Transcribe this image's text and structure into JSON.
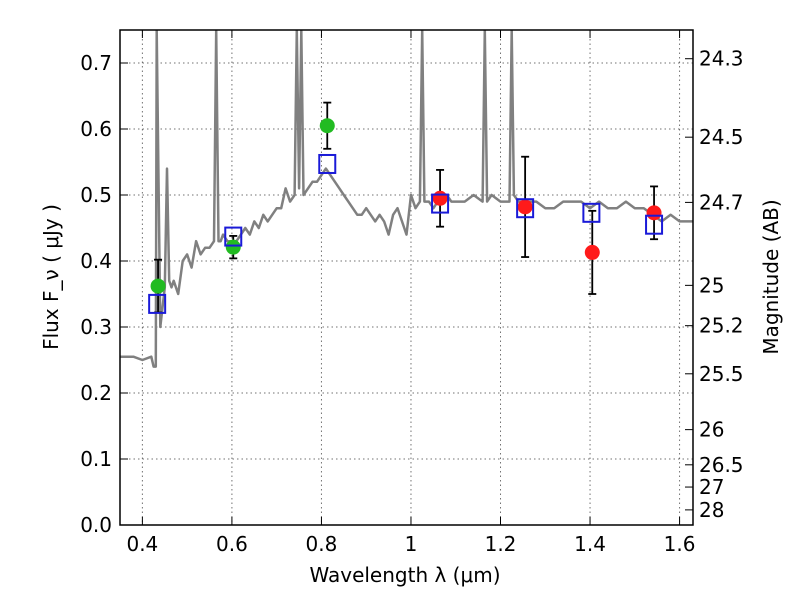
{
  "chart_data": {
    "type": "line",
    "xlabel": "Wavelength  λ (μm)",
    "ylabel": "Flux  F_ν  ( μJy )",
    "y2label": "Magnitude (AB)",
    "xlim": [
      0.35,
      1.63
    ],
    "ylim": [
      0.0,
      0.75
    ],
    "grid": true,
    "x_ticks": [
      0.4,
      0.6,
      0.8,
      1.0,
      1.2,
      1.4,
      1.6
    ],
    "x_tick_labels": [
      "0.4",
      "0.6",
      "0.8",
      "1",
      "1.2",
      "1.4",
      "1.6"
    ],
    "y_ticks": [
      0.0,
      0.1,
      0.2,
      0.3,
      0.4,
      0.5,
      0.6,
      0.7
    ],
    "y_tick_labels": [
      "0.0",
      "0.1",
      "0.2",
      "0.3",
      "0.4",
      "0.5",
      "0.6",
      "0.7"
    ],
    "y2_ticks": [
      {
        "label": "24.3",
        "flux": 0.7065
      },
      {
        "label": "24.5",
        "flux": 0.5876
      },
      {
        "label": "24.7",
        "flux": 0.4888
      },
      {
        "label": "25",
        "flux": 0.3631
      },
      {
        "label": "25.2",
        "flux": 0.302
      },
      {
        "label": "25.5",
        "flux": 0.2291
      },
      {
        "label": "26",
        "flux": 0.1445
      },
      {
        "label": "26.5",
        "flux": 0.0912
      },
      {
        "label": "27",
        "flux": 0.0575
      },
      {
        "label": "28",
        "flux": 0.0229
      }
    ],
    "series": [
      {
        "style": "sed-line",
        "color": "#808080",
        "x": [
          0.35,
          0.38,
          0.4,
          0.42,
          0.425,
          0.43,
          0.432,
          0.44,
          0.45,
          0.455,
          0.46,
          0.465,
          0.47,
          0.48,
          0.49,
          0.5,
          0.51,
          0.52,
          0.53,
          0.54,
          0.55,
          0.56,
          0.565,
          0.57,
          0.575,
          0.58,
          0.59,
          0.6,
          0.61,
          0.62,
          0.63,
          0.64,
          0.65,
          0.66,
          0.67,
          0.68,
          0.69,
          0.7,
          0.71,
          0.72,
          0.73,
          0.74,
          0.745,
          0.75,
          0.755,
          0.76,
          0.77,
          0.78,
          0.79,
          0.8,
          0.81,
          0.82,
          0.83,
          0.84,
          0.85,
          0.86,
          0.87,
          0.88,
          0.89,
          0.9,
          0.91,
          0.92,
          0.93,
          0.94,
          0.95,
          0.96,
          0.97,
          0.98,
          0.99,
          1.0,
          1.01,
          1.02,
          1.025,
          1.03,
          1.04,
          1.05,
          1.06,
          1.07,
          1.08,
          1.09,
          1.1,
          1.12,
          1.14,
          1.16,
          1.165,
          1.17,
          1.18,
          1.2,
          1.22,
          1.225,
          1.23,
          1.24,
          1.26,
          1.28,
          1.3,
          1.32,
          1.34,
          1.36,
          1.38,
          1.4,
          1.42,
          1.44,
          1.46,
          1.48,
          1.5,
          1.52,
          1.54,
          1.56,
          1.58,
          1.6,
          1.63
        ],
        "y": [
          0.255,
          0.255,
          0.25,
          0.255,
          0.24,
          0.24,
          0.75,
          0.3,
          0.36,
          0.54,
          0.37,
          0.36,
          0.37,
          0.35,
          0.4,
          0.41,
          0.39,
          0.43,
          0.41,
          0.42,
          0.42,
          0.43,
          0.75,
          0.43,
          0.43,
          0.44,
          0.43,
          0.43,
          0.43,
          0.44,
          0.45,
          0.44,
          0.46,
          0.45,
          0.47,
          0.46,
          0.47,
          0.48,
          0.48,
          0.51,
          0.49,
          0.5,
          0.75,
          0.51,
          0.75,
          0.5,
          0.51,
          0.52,
          0.52,
          0.53,
          0.54,
          0.53,
          0.52,
          0.51,
          0.5,
          0.49,
          0.48,
          0.47,
          0.47,
          0.48,
          0.47,
          0.46,
          0.47,
          0.46,
          0.44,
          0.47,
          0.48,
          0.46,
          0.44,
          0.5,
          0.48,
          0.49,
          0.75,
          0.49,
          0.49,
          0.48,
          0.49,
          0.49,
          0.5,
          0.49,
          0.49,
          0.49,
          0.5,
          0.49,
          0.75,
          0.49,
          0.5,
          0.49,
          0.49,
          0.75,
          0.5,
          0.49,
          0.49,
          0.49,
          0.48,
          0.48,
          0.49,
          0.49,
          0.49,
          0.48,
          0.49,
          0.48,
          0.48,
          0.49,
          0.48,
          0.48,
          0.47,
          0.46,
          0.47,
          0.46,
          0.46
        ]
      },
      {
        "style": "green-circles",
        "color": "#22bb22",
        "x": [
          0.435,
          0.603,
          0.813
        ],
        "y": [
          0.362,
          0.421,
          0.605
        ],
        "err": [
          0.04,
          0.017,
          0.035
        ]
      },
      {
        "style": "red-circles",
        "color": "#ff1a1a",
        "x": [
          1.065,
          1.255,
          1.405,
          1.543
        ],
        "y": [
          0.495,
          0.482,
          0.413,
          0.473
        ],
        "err": [
          0.043,
          0.076,
          0.063,
          0.04
        ]
      },
      {
        "style": "blue-open-squares",
        "color": "#1a1ad8",
        "x": [
          0.433,
          0.603,
          0.813,
          1.065,
          1.255,
          1.403,
          1.543
        ],
        "y": [
          0.335,
          0.437,
          0.547,
          0.487,
          0.48,
          0.473,
          0.455
        ]
      }
    ]
  }
}
